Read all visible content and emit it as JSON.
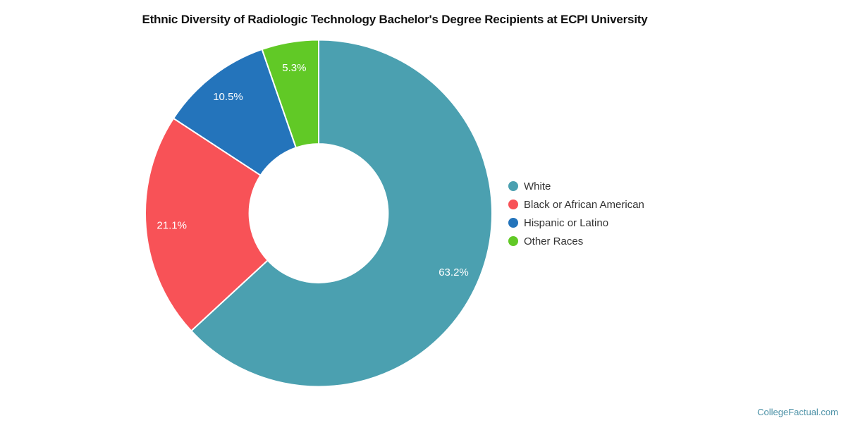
{
  "title": "Ethnic Diversity of Radiologic Technology Bachelor's Degree Recipients at ECPI University",
  "watermark": "CollegeFactual.com",
  "watermark_color": "#4F93A8",
  "chart_data": {
    "type": "pie",
    "subtype": "donut",
    "title": "Ethnic Diversity of Radiologic Technology Bachelor's Degree Recipients at ECPI University",
    "legend_position": "right",
    "grid": false,
    "start_angle_deg": 0,
    "direction": "clockwise",
    "inner_radius_ratio": 0.4,
    "segments": [
      {
        "label": "White",
        "value": 63.2,
        "value_label": "63.2%",
        "color": "#4BA0B0"
      },
      {
        "label": "Black or African American",
        "value": 21.1,
        "value_label": "21.1%",
        "color": "#F85257"
      },
      {
        "label": "Hispanic or Latino",
        "value": 10.5,
        "value_label": "10.5%",
        "color": "#2474BB"
      },
      {
        "label": "Other Races",
        "value": 5.3,
        "value_label": "5.3%",
        "color": "#61C926"
      }
    ]
  }
}
